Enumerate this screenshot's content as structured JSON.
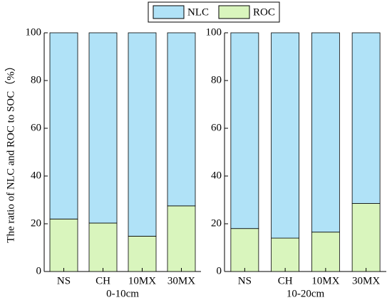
{
  "chart_data": {
    "type": "bar",
    "stacked": true,
    "ylabel": "The ratio of NLC and ROC to SOC（%）",
    "ylim": [
      0,
      100
    ],
    "yticks": [
      0,
      20,
      40,
      60,
      80,
      100
    ],
    "legend": "top",
    "series": [
      {
        "name": "NLC",
        "color": "#b0e2f7"
      },
      {
        "name": "ROC",
        "color": "#d9f5bd"
      }
    ],
    "stack_order": [
      "ROC",
      "NLC"
    ],
    "panels": [
      {
        "xlabel": "0-10cm",
        "categories": [
          "NS",
          "CH",
          "10MX",
          "30MX"
        ],
        "series": [
          {
            "values": [
              78,
              79.7,
              85.2,
              72.5
            ]
          },
          {
            "values": [
              22,
              20.3,
              14.8,
              27.5
            ]
          }
        ]
      },
      {
        "xlabel": "10-20cm",
        "categories": [
          "NS",
          "CH",
          "10MX",
          "30MX"
        ],
        "series": [
          {
            "values": [
              82,
              86,
              83.5,
              71.5
            ]
          },
          {
            "values": [
              18,
              14,
              16.5,
              28.5
            ]
          }
        ]
      }
    ]
  }
}
